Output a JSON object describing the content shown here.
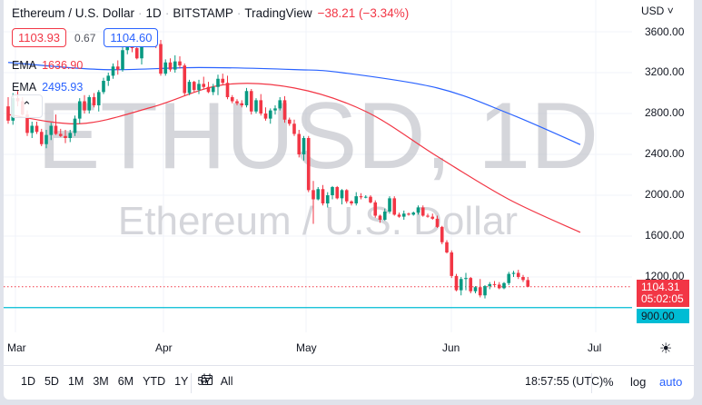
{
  "header": {
    "symbol_name": "Ethereum / U.S. Dollar",
    "interval": "1D",
    "exchange": "BITSTAMP",
    "source": "TradingView",
    "change": "−38.21 (−3.34%)",
    "separator": "·",
    "bid": "1103.93",
    "spread": "0.67",
    "ask": "1104.60"
  },
  "indicators": [
    {
      "label": "EMA",
      "value": "1636.90",
      "color": "#f23645"
    },
    {
      "label": "EMA",
      "value": "2495.93",
      "color": "#2962ff"
    }
  ],
  "watermark": {
    "line1": "ETHUSD, 1D",
    "line2": "Ethereum / U.S. Dollar"
  },
  "price_axis": {
    "currency": "USD",
    "currency_chevron": "˅",
    "ticks": [
      "3600.00",
      "3200.00",
      "2800.00",
      "2400.00",
      "2000.00",
      "1600.00",
      "1200.00"
    ],
    "last_price": "1104.31",
    "countdown": "05:02:05",
    "horizontal_line": "900.00"
  },
  "time_axis": {
    "months": [
      "Mar",
      "Apr",
      "May",
      "Jun",
      "Jul"
    ],
    "settings_icon": "☀"
  },
  "toolbar": {
    "ranges": [
      "1D",
      "5D",
      "1M",
      "3M",
      "6M",
      "YTD",
      "1Y",
      "5Y",
      "All"
    ],
    "goto_icon": "⇥",
    "clock": "18:57:55 (UTC)",
    "percent": "%",
    "log": "log",
    "auto": "auto"
  },
  "colors": {
    "up": "#089981",
    "down": "#f23645",
    "ema_short": "#f23645",
    "ema_long": "#2962ff",
    "hline": "#00bcd4",
    "grid": "#f0f3fa",
    "watermark": "rgba(178,181,190,0.55)"
  },
  "chart_data": {
    "type": "candlestick",
    "title": "Ethereum / U.S. Dollar · 1D · BITSTAMP",
    "xlabel": "",
    "ylabel": "USD",
    "ylim": [
      800,
      3750
    ],
    "y_ticks": [
      1200,
      1600,
      2000,
      2400,
      2800,
      3200,
      3600
    ],
    "x_ticks": [
      "Mar",
      "Apr",
      "May",
      "Jun",
      "Jul"
    ],
    "grid": true,
    "last_price": 1104.31,
    "horizontal_line": 900.0,
    "candles": [
      [
        2870,
        2960,
        2700,
        2730
      ],
      [
        2730,
        3000,
        2690,
        2950
      ],
      [
        2950,
        3020,
        2870,
        2920
      ],
      [
        2920,
        2960,
        2780,
        2790
      ],
      [
        2790,
        2830,
        2580,
        2610
      ],
      [
        2610,
        2720,
        2560,
        2680
      ],
      [
        2680,
        2720,
        2600,
        2620
      ],
      [
        2620,
        2650,
        2480,
        2500
      ],
      [
        2500,
        2640,
        2460,
        2590
      ],
      [
        2590,
        2710,
        2540,
        2680
      ],
      [
        2680,
        2790,
        2590,
        2600
      ],
      [
        2600,
        2650,
        2570,
        2580
      ],
      [
        2580,
        2640,
        2510,
        2560
      ],
      [
        2560,
        2640,
        2520,
        2610
      ],
      [
        2610,
        2780,
        2580,
        2750
      ],
      [
        2750,
        2950,
        2700,
        2920
      ],
      [
        2920,
        2980,
        2800,
        2830
      ],
      [
        2830,
        2980,
        2800,
        2960
      ],
      [
        2960,
        3000,
        2860,
        2880
      ],
      [
        2880,
        3030,
        2820,
        3010
      ],
      [
        3010,
        3150,
        2990,
        3120
      ],
      [
        3120,
        3200,
        3070,
        3170
      ],
      [
        3170,
        3290,
        3140,
        3260
      ],
      [
        3260,
        3320,
        3180,
        3230
      ],
      [
        3230,
        3450,
        3210,
        3420
      ],
      [
        3420,
        3500,
        3380,
        3470
      ],
      [
        3470,
        3520,
        3400,
        3440
      ],
      [
        3440,
        3500,
        3330,
        3340
      ],
      [
        3340,
        3590,
        3280,
        3520
      ],
      [
        3520,
        3600,
        3490,
        3540
      ],
      [
        3540,
        3590,
        3460,
        3510
      ],
      [
        3510,
        3580,
        3440,
        3480
      ],
      [
        3480,
        3520,
        3170,
        3190
      ],
      [
        3190,
        3330,
        3170,
        3300
      ],
      [
        3300,
        3340,
        3210,
        3230
      ],
      [
        3230,
        3370,
        3200,
        3310
      ],
      [
        3310,
        3360,
        3240,
        3270
      ],
      [
        3270,
        3290,
        2970,
        3000
      ],
      [
        3000,
        3130,
        2980,
        3110
      ],
      [
        3110,
        3120,
        3010,
        3030
      ],
      [
        3030,
        3130,
        2990,
        3090
      ],
      [
        3090,
        3160,
        3040,
        3060
      ],
      [
        3060,
        3110,
        3000,
        3010
      ],
      [
        3010,
        3090,
        2980,
        3060
      ],
      [
        3060,
        3180,
        2980,
        3140
      ],
      [
        3140,
        3190,
        3080,
        3100
      ],
      [
        3100,
        3170,
        2940,
        2960
      ],
      [
        2960,
        2980,
        2900,
        2920
      ],
      [
        2920,
        2940,
        2880,
        2900
      ],
      [
        2900,
        2930,
        2860,
        2880
      ],
      [
        2880,
        3050,
        2860,
        3020
      ],
      [
        3020,
        3040,
        2790,
        2820
      ],
      [
        2820,
        2950,
        2800,
        2930
      ],
      [
        2930,
        2990,
        2780,
        2800
      ],
      [
        2800,
        2860,
        2730,
        2750
      ],
      [
        2750,
        2850,
        2700,
        2830
      ],
      [
        2830,
        2880,
        2790,
        2850
      ],
      [
        2850,
        2960,
        2830,
        2930
      ],
      [
        2930,
        2970,
        2710,
        2740
      ],
      [
        2740,
        2760,
        2680,
        2700
      ],
      [
        2700,
        2740,
        2580,
        2600
      ],
      [
        2600,
        2640,
        2370,
        2400
      ],
      [
        2400,
        2580,
        2340,
        2560
      ],
      [
        2560,
        2580,
        2030,
        2050
      ],
      [
        2050,
        2140,
        1720,
        1960
      ],
      [
        1960,
        2080,
        1950,
        2060
      ],
      [
        2060,
        2100,
        1900,
        1920
      ],
      [
        1920,
        2030,
        1880,
        2000
      ],
      [
        2000,
        2090,
        1960,
        2080
      ],
      [
        2080,
        2090,
        1960,
        1970
      ],
      [
        1970,
        2060,
        1910,
        2050
      ],
      [
        2050,
        2060,
        1920,
        1940
      ],
      [
        1940,
        1950,
        1900,
        1920
      ],
      [
        1920,
        2030,
        1900,
        1990
      ],
      [
        1990,
        2020,
        1960,
        1980
      ],
      [
        1980,
        2000,
        1970,
        1985
      ],
      [
        1985,
        2000,
        1920,
        1930
      ],
      [
        1930,
        1950,
        1780,
        1800
      ],
      [
        1800,
        1810,
        1730,
        1760
      ],
      [
        1760,
        1870,
        1750,
        1840
      ],
      [
        1840,
        1990,
        1820,
        1970
      ],
      [
        1970,
        1990,
        1800,
        1810
      ],
      [
        1810,
        1830,
        1780,
        1790
      ],
      [
        1790,
        1850,
        1760,
        1820
      ],
      [
        1820,
        1830,
        1800,
        1810
      ],
      [
        1810,
        1840,
        1800,
        1830
      ],
      [
        1830,
        1900,
        1810,
        1880
      ],
      [
        1880,
        1900,
        1790,
        1800
      ],
      [
        1800,
        1820,
        1780,
        1790
      ],
      [
        1790,
        1820,
        1760,
        1770
      ],
      [
        1770,
        1800,
        1680,
        1690
      ],
      [
        1690,
        1700,
        1520,
        1540
      ],
      [
        1540,
        1560,
        1430,
        1440
      ],
      [
        1440,
        1460,
        1190,
        1210
      ],
      [
        1210,
        1230,
        1060,
        1070
      ],
      [
        1070,
        1200,
        1020,
        1180
      ],
      [
        1180,
        1240,
        1070,
        1190
      ],
      [
        1190,
        1200,
        1040,
        1060
      ],
      [
        1060,
        1110,
        1040,
        1100
      ],
      [
        1100,
        1180,
        1000,
        1020
      ],
      [
        1020,
        1120,
        990,
        1110
      ],
      [
        1110,
        1150,
        1080,
        1130
      ],
      [
        1130,
        1160,
        1100,
        1125
      ],
      [
        1125,
        1150,
        1080,
        1090
      ],
      [
        1090,
        1150,
        1080,
        1140
      ],
      [
        1140,
        1250,
        1120,
        1230
      ],
      [
        1230,
        1260,
        1200,
        1240
      ],
      [
        1240,
        1270,
        1180,
        1200
      ],
      [
        1200,
        1220,
        1150,
        1170
      ],
      [
        1170,
        1200,
        1100,
        1104
      ]
    ],
    "series": [
      {
        "name": "EMA (short)",
        "color": "#f23645",
        "last": 1636.9,
        "points": [
          [
            0,
            2790
          ],
          [
            15,
            2700
          ],
          [
            30,
            2860
          ],
          [
            45,
            3080
          ],
          [
            60,
            3050
          ],
          [
            75,
            2820
          ],
          [
            90,
            2380
          ],
          [
            105,
            1960
          ],
          [
            120,
            1636.9
          ]
        ]
      },
      {
        "name": "EMA (long)",
        "color": "#2962ff",
        "last": 2495.93,
        "points": [
          [
            0,
            3300
          ],
          [
            20,
            3230
          ],
          [
            40,
            3250
          ],
          [
            60,
            3230
          ],
          [
            70,
            3200
          ],
          [
            90,
            3050
          ],
          [
            105,
            2800
          ],
          [
            120,
            2495.93
          ]
        ]
      }
    ]
  }
}
